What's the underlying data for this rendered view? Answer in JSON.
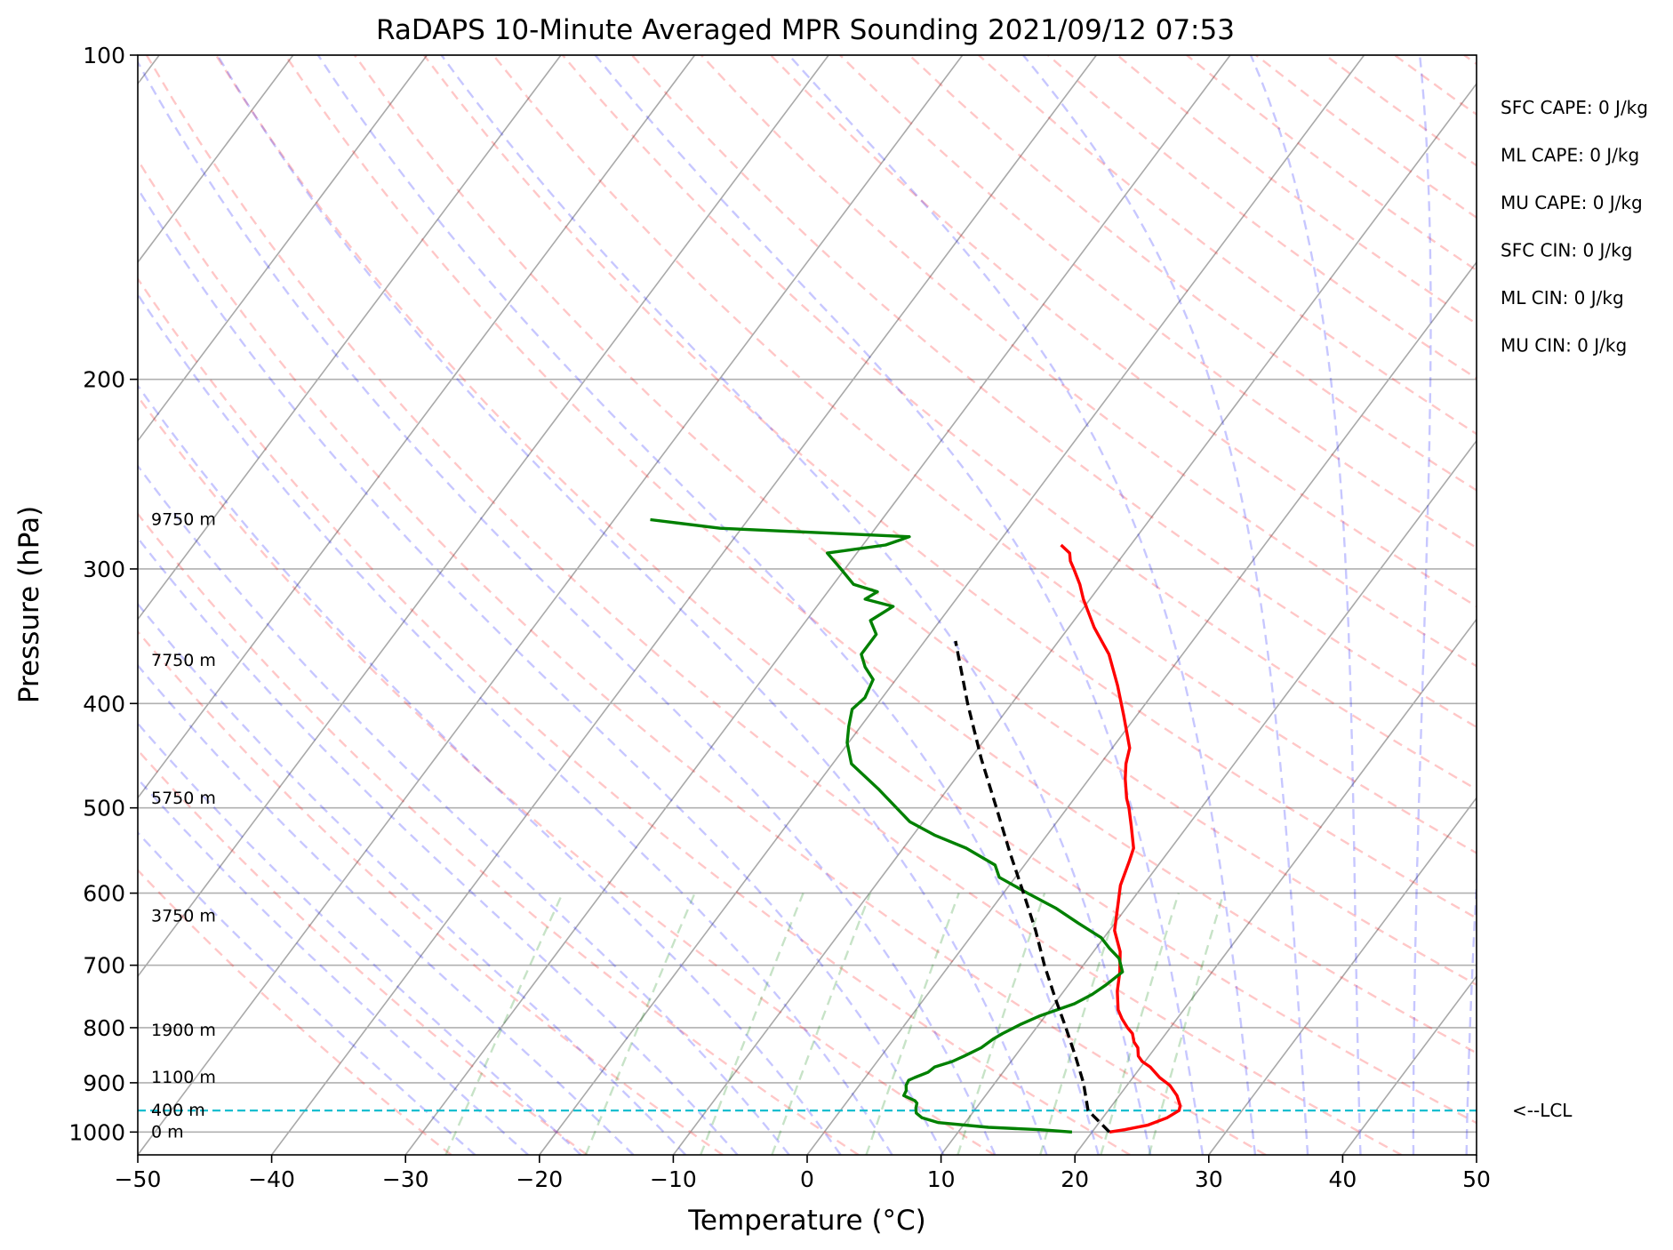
{
  "chart_data": {
    "type": "skew-t",
    "title": "RaDAPS 10-Minute Averaged MPR Sounding 2021/09/12 07:53",
    "xlabel": "Temperature (°C)",
    "ylabel": "Pressure (hPa)",
    "xlim": [
      -50,
      50
    ],
    "ylim": [
      1050,
      100
    ],
    "y_scale": "log",
    "grid": true,
    "x_ticks": [
      -50,
      -40,
      -30,
      -20,
      -10,
      0,
      10,
      20,
      30,
      40,
      50
    ],
    "x_tick_labels": [
      "−50",
      "−40",
      "−30",
      "−20",
      "−10",
      "0",
      "10",
      "20",
      "30",
      "40",
      "50"
    ],
    "y_ticks": [
      1000,
      900,
      800,
      700,
      600,
      500,
      400,
      300,
      200,
      100
    ],
    "y_tick_labels": [
      "1000",
      "900",
      "800",
      "700",
      "600",
      "500",
      "400",
      "300",
      "200",
      "100"
    ],
    "series": [
      {
        "role": "temperature",
        "color": "#ff0000",
        "x": [
          21.3,
          22.3,
          23.8,
          24.8,
          25.3,
          25.1,
          24.3,
          23.2,
          22.0,
          20.7,
          19.8,
          19.2,
          18.7,
          18.1,
          17.5,
          16.8,
          15.9,
          15.1,
          14.0,
          13.1,
          12.0,
          10.4,
          9.2,
          8.3,
          7.6,
          7.2,
          5.8,
          4.6,
          3.9,
          2.7,
          1.9,
          1.3,
          -1.0,
          -3.1,
          -5.5,
          -8.1,
          -10.5,
          -11.6,
          -12.9,
          -13.6,
          -14.1,
          -15.2
        ],
        "y": [
          1000,
          995,
          985,
          970,
          955,
          945,
          925,
          905,
          890,
          870,
          860,
          850,
          835,
          825,
          810,
          800,
          785,
          770,
          740,
          710,
          680,
          650,
          615,
          590,
          560,
          545,
          520,
          500,
          490,
          470,
          455,
          440,
          410,
          385,
          360,
          340,
          320,
          310,
          300,
          295,
          290,
          285
        ]
      },
      {
        "role": "dewpoint",
        "color": "#008000",
        "x": [
          18.5,
          16.0,
          12.0,
          8.0,
          6.5,
          5.8,
          5.5,
          5.3,
          5.0,
          3.9,
          3.8,
          3.5,
          3.4,
          3.7,
          4.4,
          4.6,
          5.6,
          6.2,
          7.0,
          7.4,
          7.8,
          8.6,
          9.6,
          11.5,
          12.3,
          12.8,
          13.3,
          12.3,
          11.0,
          9.8,
          7.3,
          4.8,
          1.8,
          -1.2,
          -2.2,
          -5.3,
          -8.4,
          -11.0,
          -15.2,
          -18.6,
          -20.1,
          -20.9,
          -21.6,
          -21.3,
          -21.7,
          -23.0,
          -24.0,
          -24.0,
          -25.2,
          -24.3,
          -26.8,
          -26.3,
          -28.5,
          -30.3,
          -32.2,
          -28.3,
          -27.0,
          -41.6,
          -47.3
        ],
        "y": [
          1000,
          995,
          990,
          980,
          970,
          960,
          950,
          940,
          935,
          925,
          915,
          905,
          895,
          890,
          880,
          870,
          860,
          850,
          835,
          820,
          810,
          795,
          780,
          760,
          745,
          730,
          710,
          690,
          675,
          660,
          640,
          620,
          600,
          580,
          565,
          545,
          530,
          515,
          480,
          455,
          435,
          420,
          405,
          395,
          380,
          370,
          360,
          345,
          335,
          325,
          320,
          315,
          310,
          300,
          290,
          285,
          280,
          275,
          270
        ]
      },
      {
        "role": "parcel",
        "color": "#000000",
        "x": [
          21.3,
          18.5,
          16.6,
          14.5,
          12.2,
          9.7,
          7.1,
          4.5,
          1.5,
          -1.8,
          -5.3,
          -9.2,
          -13.3,
          -17.7
        ],
        "y": [
          1000,
          955,
          900,
          850,
          800,
          750,
          700,
          650,
          600,
          550,
          500,
          450,
          400,
          350
        ]
      }
    ],
    "lcl_pressure": 955,
    "lcl_label": "<--LCL",
    "height_labels": [
      {
        "p": 1000,
        "label": "0 m"
      },
      {
        "p": 955,
        "label": "400 m"
      },
      {
        "p": 890,
        "label": "1100 m"
      },
      {
        "p": 805,
        "label": "1900 m"
      },
      {
        "p": 630,
        "label": "3750 m"
      },
      {
        "p": 490,
        "label": "5750 m"
      },
      {
        "p": 365,
        "label": "7750 m"
      },
      {
        "p": 270,
        "label": "9750 m"
      }
    ],
    "indices": [
      {
        "label": "SFC CAPE: 0 J/kg"
      },
      {
        "label": "ML CAPE: 0 J/kg"
      },
      {
        "label": "MU CAPE: 0 J/kg"
      },
      {
        "label": "SFC CIN: 0 J/kg"
      },
      {
        "label": "ML CIN: 0 J/kg"
      },
      {
        "label": "MU CIN: 0 J/kg"
      }
    ],
    "colors": {
      "temperature": "#ff0000",
      "dewpoint": "#008000",
      "parcel": "#000000",
      "lcl": "#17becf",
      "dry_adiabat": "#ff0000",
      "moist_adiabat": "#0000ff",
      "mixing_ratio": "#008000",
      "isotherm": "#808080"
    }
  }
}
